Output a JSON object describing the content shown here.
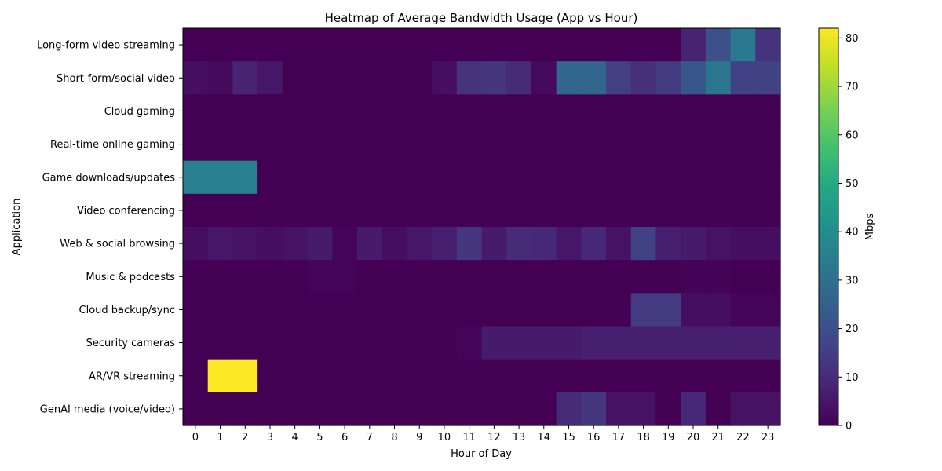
{
  "chart_data": {
    "type": "heatmap",
    "title": "Heatmap of Average Bandwidth Usage (App vs Hour)",
    "xlabel": "Hour of Day",
    "ylabel": "Application",
    "colorbar_label": "Mbps",
    "colormap": "viridis",
    "vmin": 0,
    "vmax": 82,
    "colorbar_ticks": [
      0,
      10,
      20,
      30,
      40,
      50,
      60,
      70,
      80
    ],
    "x": [
      "0",
      "1",
      "2",
      "3",
      "4",
      "5",
      "6",
      "7",
      "8",
      "9",
      "10",
      "11",
      "12",
      "13",
      "14",
      "15",
      "16",
      "17",
      "18",
      "19",
      "20",
      "21",
      "22",
      "23"
    ],
    "y": [
      "Long-form video streaming",
      "Short-form/social video",
      "Cloud gaming",
      "Real-time online gaming",
      "Game downloads/updates",
      "Video conferencing",
      "Web & social browsing",
      "Music & podcasts",
      "Cloud backup/sync",
      "Security cameras",
      "AR/VR streaming",
      "GenAI media (voice/video)"
    ],
    "values": [
      [
        0,
        0,
        0,
        0,
        0,
        0,
        0,
        0,
        0,
        0,
        0,
        0,
        0,
        0,
        0,
        0,
        0,
        0,
        0,
        0,
        8,
        20,
        33,
        12
      ],
      [
        3,
        2,
        8,
        5,
        0,
        0,
        0,
        0,
        0,
        0,
        3,
        12,
        13,
        10,
        2,
        27,
        27,
        15,
        11,
        14,
        22,
        32,
        16,
        16
      ],
      [
        0,
        0,
        0,
        0,
        0,
        0,
        0,
        0,
        0,
        0,
        0,
        0,
        0,
        0,
        0,
        0,
        0,
        0,
        0,
        0,
        0,
        0,
        0,
        0
      ],
      [
        0,
        0,
        0,
        0,
        0,
        0,
        0,
        0,
        0,
        0,
        0,
        0,
        0,
        0,
        0,
        0,
        0,
        0,
        0,
        0,
        0,
        0,
        0,
        0
      ],
      [
        35,
        35,
        35,
        0,
        0,
        0,
        0,
        0,
        0,
        0,
        0,
        0,
        0,
        0,
        0,
        0,
        0,
        0,
        0,
        0,
        0,
        0,
        0,
        0
      ],
      [
        0,
        0,
        0,
        0,
        0,
        0,
        0,
        0,
        0,
        0,
        0,
        0,
        0,
        0,
        0,
        0,
        0,
        0,
        0,
        0,
        0,
        0,
        0,
        0
      ],
      [
        3,
        5,
        4,
        3,
        4,
        6,
        1,
        6,
        3,
        5,
        7,
        13,
        6,
        10,
        9,
        5,
        9,
        4,
        16,
        7,
        6,
        4,
        3,
        3
      ],
      [
        0,
        0,
        0,
        0,
        0,
        1,
        1,
        0,
        0,
        0,
        0,
        0,
        0,
        0,
        0,
        0,
        0,
        0,
        0,
        0,
        0.5,
        0.5,
        0,
        0
      ],
      [
        0,
        0,
        0,
        0,
        0,
        0,
        0,
        0,
        0,
        0,
        0,
        0,
        0,
        0,
        0,
        0,
        0,
        0,
        14,
        14,
        3,
        3,
        1,
        1
      ],
      [
        0,
        0,
        0,
        0,
        0,
        0,
        0,
        0,
        0,
        0,
        0,
        1,
        6,
        6,
        6,
        6,
        7,
        7,
        7,
        7,
        7,
        7,
        7,
        7
      ],
      [
        0,
        82,
        82,
        0,
        0,
        0,
        0,
        0,
        0,
        0,
        0,
        0,
        0,
        0,
        0,
        0,
        0,
        0,
        0,
        0,
        0,
        0,
        0,
        0
      ],
      [
        0,
        0,
        0,
        0,
        0,
        0,
        0,
        0,
        0,
        0,
        0,
        0,
        0,
        0,
        0,
        10,
        13,
        4,
        4,
        0,
        9,
        0,
        4,
        4
      ]
    ]
  }
}
